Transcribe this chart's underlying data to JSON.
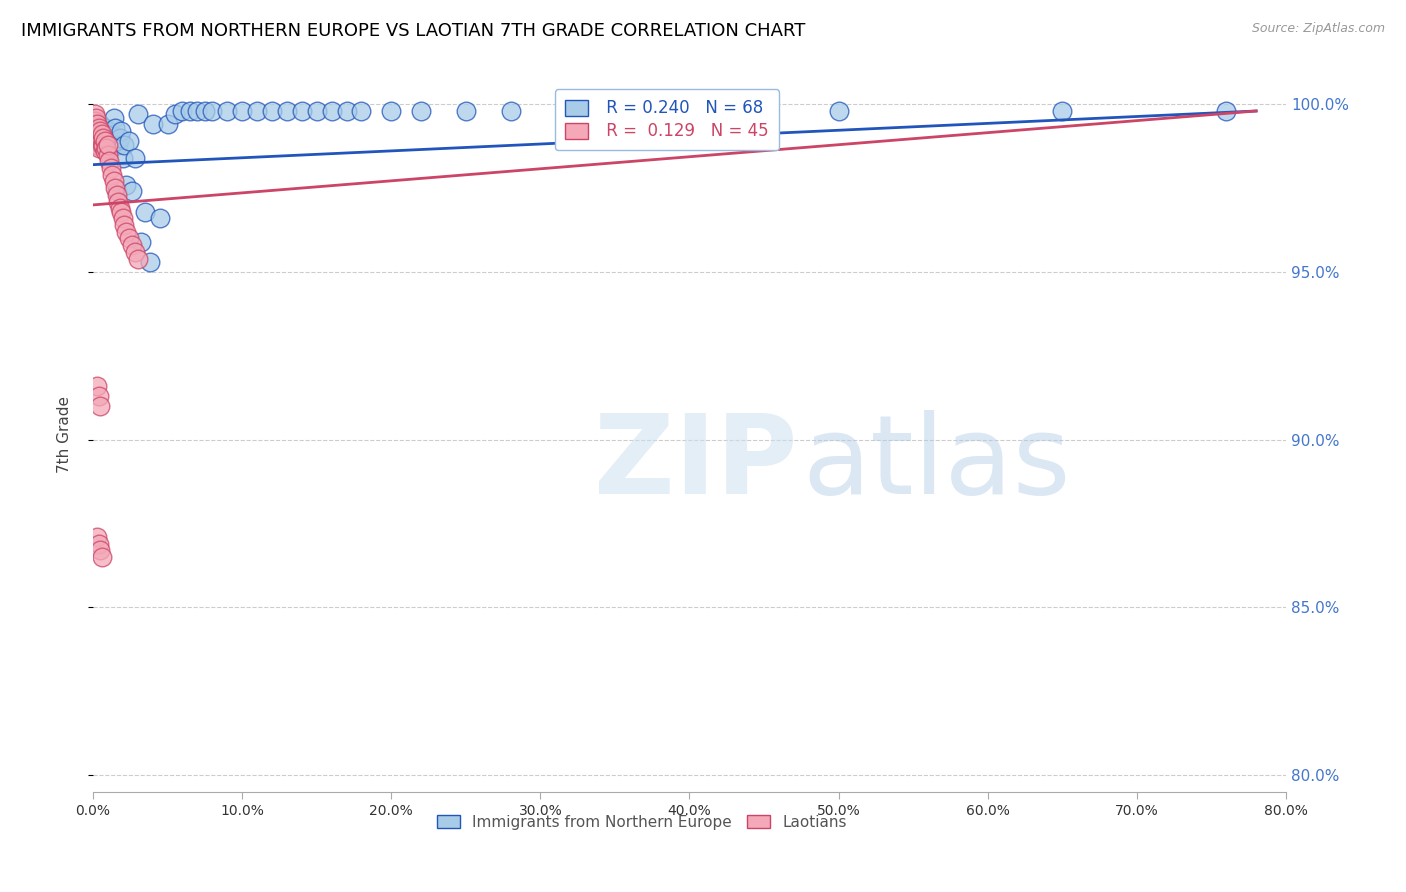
{
  "title": "IMMIGRANTS FROM NORTHERN EUROPE VS LAOTIAN 7TH GRADE CORRELATION CHART",
  "source": "Source: ZipAtlas.com",
  "ylabel": "7th Grade",
  "xlim": [
    0.0,
    0.8
  ],
  "ylim": [
    0.795,
    1.008
  ],
  "legend_entries": [
    "Immigrants from Northern Europe",
    "Laotians"
  ],
  "legend_R_blue": "R = 0.240",
  "legend_N_blue": "N = 68",
  "legend_R_pink": "R =  0.129",
  "legend_N_pink": "N = 45",
  "blue_color": "#a8cce8",
  "pink_color": "#f4a8b8",
  "trendline_blue": "#2255bb",
  "trendline_pink": "#cc4466",
  "grid_color": "#cccccc",
  "right_tick_color": "#4477cc",
  "blue_x": [
    0.001,
    0.002,
    0.002,
    0.003,
    0.003,
    0.004,
    0.004,
    0.005,
    0.005,
    0.005,
    0.006,
    0.006,
    0.007,
    0.007,
    0.008,
    0.008,
    0.009,
    0.009,
    0.01,
    0.01,
    0.011,
    0.012,
    0.013,
    0.014,
    0.015,
    0.015,
    0.016,
    0.017,
    0.018,
    0.019,
    0.02,
    0.021,
    0.022,
    0.024,
    0.026,
    0.028,
    0.03,
    0.032,
    0.035,
    0.038,
    0.04,
    0.045,
    0.05,
    0.055,
    0.06,
    0.065,
    0.07,
    0.075,
    0.08,
    0.09,
    0.1,
    0.11,
    0.12,
    0.13,
    0.14,
    0.15,
    0.16,
    0.17,
    0.18,
    0.2,
    0.22,
    0.25,
    0.28,
    0.32,
    0.38,
    0.5,
    0.65,
    0.76
  ],
  "blue_y": [
    0.99,
    0.992,
    0.995,
    0.988,
    0.992,
    0.99,
    0.994,
    0.988,
    0.991,
    0.994,
    0.99,
    0.993,
    0.989,
    0.992,
    0.99,
    0.993,
    0.99,
    0.992,
    0.989,
    0.992,
    0.989,
    0.987,
    0.991,
    0.996,
    0.99,
    0.993,
    0.974,
    0.988,
    0.99,
    0.992,
    0.984,
    0.988,
    0.976,
    0.989,
    0.974,
    0.984,
    0.997,
    0.959,
    0.968,
    0.953,
    0.994,
    0.966,
    0.994,
    0.997,
    0.998,
    0.998,
    0.998,
    0.998,
    0.998,
    0.998,
    0.998,
    0.998,
    0.998,
    0.998,
    0.998,
    0.998,
    0.998,
    0.998,
    0.998,
    0.998,
    0.998,
    0.998,
    0.998,
    0.998,
    0.998,
    0.998,
    0.998,
    0.998
  ],
  "pink_x": [
    0.001,
    0.001,
    0.002,
    0.002,
    0.002,
    0.003,
    0.003,
    0.003,
    0.004,
    0.004,
    0.004,
    0.005,
    0.005,
    0.006,
    0.006,
    0.007,
    0.007,
    0.008,
    0.008,
    0.009,
    0.01,
    0.01,
    0.011,
    0.012,
    0.013,
    0.014,
    0.015,
    0.016,
    0.017,
    0.018,
    0.019,
    0.02,
    0.021,
    0.022,
    0.024,
    0.026,
    0.028,
    0.03,
    0.003,
    0.004,
    0.005,
    0.003,
    0.004,
    0.005,
    0.006
  ],
  "pink_y": [
    0.997,
    0.995,
    0.993,
    0.996,
    0.99,
    0.992,
    0.994,
    0.988,
    0.991,
    0.993,
    0.987,
    0.99,
    0.992,
    0.988,
    0.991,
    0.988,
    0.99,
    0.986,
    0.989,
    0.987,
    0.985,
    0.988,
    0.983,
    0.981,
    0.979,
    0.977,
    0.975,
    0.973,
    0.971,
    0.969,
    0.968,
    0.966,
    0.964,
    0.962,
    0.96,
    0.958,
    0.956,
    0.954,
    0.916,
    0.913,
    0.91,
    0.871,
    0.869,
    0.867,
    0.865
  ],
  "trendline_blue_x0": 0.0,
  "trendline_blue_x1": 0.78,
  "trendline_blue_y0": 0.982,
  "trendline_blue_y1": 0.998,
  "trendline_pink_x0": 0.0,
  "trendline_pink_x1": 0.78,
  "trendline_pink_y0": 0.97,
  "trendline_pink_y1": 0.998
}
